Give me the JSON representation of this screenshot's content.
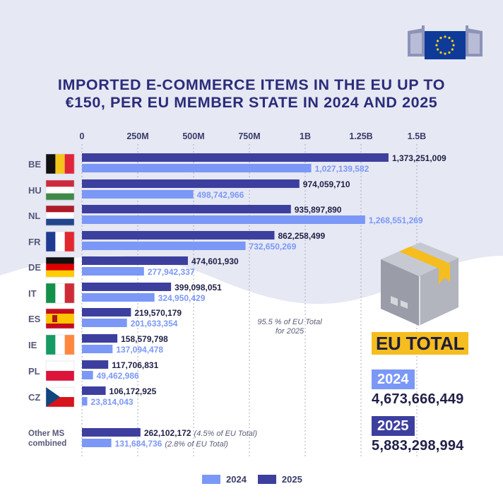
{
  "header": {
    "title_line1": "IMPORTED E-COMMERCE ITEMS IN THE EU UP TO",
    "title_line2": "€150, PER EU MEMBER STATE IN 2024 AND 2025"
  },
  "colors": {
    "bar_2024": "#7b98f7",
    "bar_2025": "#3d3f9f",
    "title": "#2b2c7a",
    "accent": "#f5bd1f"
  },
  "chart_data": {
    "type": "bar",
    "orientation": "horizontal",
    "x_ticks": [
      "0",
      "250M",
      "500M",
      "750M",
      "1B",
      "1.25B",
      "1.5B"
    ],
    "xlim": [
      0,
      1500000000
    ],
    "grid": true,
    "categories": [
      "BE",
      "HU",
      "NL",
      "FR",
      "DE",
      "IT",
      "ES",
      "IE",
      "PL",
      "CZ",
      "Other MS combined"
    ],
    "series": [
      {
        "name": "2025",
        "values": [
          1373251009,
          974059710,
          935897890,
          862258499,
          474601930,
          399098051,
          219570179,
          158579798,
          117706831,
          106172925,
          262102172
        ],
        "labels": [
          "1,373,251,009",
          "974,059,710",
          "935,897,890",
          "862,258,499",
          "474,601,930",
          "399,098,051",
          "219,570,179",
          "158,579,798",
          "117,706,831",
          "106,172,925",
          "262,102,172"
        ]
      },
      {
        "name": "2024",
        "values": [
          1027139582,
          498742966,
          1268551269,
          732650269,
          277942337,
          324950429,
          201633354,
          137094478,
          49462986,
          23814043,
          131684736
        ],
        "labels": [
          "1,027,139,582",
          "498,742,966",
          "1,268,551,269",
          "732,650,269",
          "277,942,337",
          "324,950,429",
          "201,633,354",
          "137,094,478",
          "49,462,986",
          "23,814,043",
          "131,684,736"
        ]
      }
    ],
    "annotations": {
      "other_2025": "(4.5% of EU Total)",
      "other_2024": "(2.8% of EU Total)",
      "top10_share_line1": "95.5 % of EU Total",
      "top10_share_line2": "for 2025"
    },
    "legend": {
      "placement": "bottom-center",
      "items": [
        "2024",
        "2025"
      ]
    }
  },
  "eu_total": {
    "label": "EU TOTAL",
    "year_2024": "2024",
    "value_2024": "4,673,666,449",
    "year_2025": "2025",
    "value_2025": "5,883,298,994"
  }
}
